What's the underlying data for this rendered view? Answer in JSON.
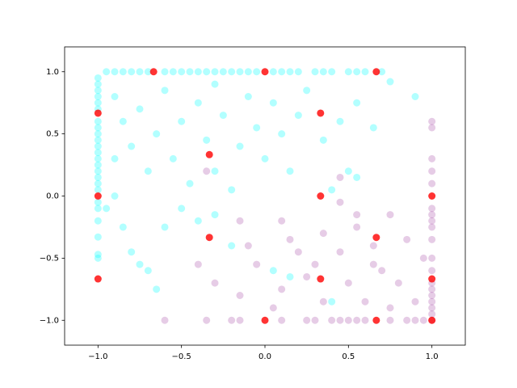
{
  "chart_data": {
    "type": "scatter",
    "xlim": [
      -1.2,
      1.2
    ],
    "ylim": [
      -1.2,
      1.2
    ],
    "xticks": [
      {
        "value": -1,
        "label": "−1.0"
      },
      {
        "value": -0.5,
        "label": "−0.5"
      },
      {
        "value": 0,
        "label": "0.0"
      },
      {
        "value": 0.5,
        "label": "0.5"
      },
      {
        "value": 1,
        "label": "1.0"
      }
    ],
    "yticks": [
      {
        "value": -1,
        "label": "−1.0"
      },
      {
        "value": -0.5,
        "label": "−0.5"
      },
      {
        "value": 0,
        "label": "0.0"
      },
      {
        "value": 0.5,
        "label": "0.5"
      },
      {
        "value": 1,
        "label": "1.0"
      }
    ],
    "grid": false,
    "series": [
      {
        "color": "#00ffff",
        "opacity": 0.3,
        "x": [
          -1,
          -1,
          -1,
          -1,
          -1,
          -1,
          -1,
          -1,
          -1,
          -1,
          -1,
          -1,
          -1,
          -1,
          -1,
          -1,
          -1,
          -1,
          -1,
          -1,
          -1,
          -1,
          -1,
          -1,
          -0.95,
          -0.9,
          -0.85,
          -0.8,
          -0.75,
          -0.7,
          -0.6,
          -0.55,
          -0.5,
          -0.45,
          -0.4,
          -0.35,
          -0.3,
          -0.25,
          -0.2,
          -0.15,
          -0.1,
          -0.05,
          0.05,
          0.1,
          0.15,
          0.2,
          0.3,
          0.35,
          0.4,
          0.5,
          0.55,
          0.6,
          0.7,
          -0.9,
          -0.85,
          -0.8,
          -0.75,
          -0.7,
          -0.65,
          -0.6,
          -0.55,
          -0.5,
          -0.45,
          -0.4,
          -0.35,
          -0.3,
          -0.25,
          -0.2,
          -0.15,
          -0.1,
          -0.05,
          0,
          0.05,
          0.1,
          0.15,
          0.2,
          0.25,
          0.35,
          0.45,
          0.55,
          0.65,
          0.75,
          0.9,
          -0.9,
          -0.85,
          -0.8,
          -0.75,
          -0.7,
          -0.6,
          -0.5,
          -0.4,
          -0.3,
          -0.2,
          0.05,
          0.15,
          0.4,
          0.4,
          0.55,
          -0.65,
          -0.95,
          -0.9,
          0.5,
          -0.3
        ],
        "y": [
          0.95,
          0.9,
          0.85,
          0.8,
          0.75,
          0.7,
          0.6,
          0.55,
          0.5,
          0.45,
          0.4,
          0.35,
          0.3,
          0.25,
          0.2,
          0.15,
          0.1,
          0.05,
          -0.05,
          -0.1,
          -0.2,
          -0.33,
          -0.47,
          -0.5,
          1,
          1,
          1,
          1,
          1,
          1,
          1,
          1,
          1,
          1,
          1,
          1,
          1,
          1,
          1,
          1,
          1,
          1,
          1,
          1,
          1,
          1,
          1,
          1,
          1,
          1,
          1,
          1,
          1,
          0.8,
          0.6,
          0.4,
          0.7,
          0.2,
          0.5,
          0.85,
          0.3,
          0.6,
          0.1,
          0.75,
          0.45,
          0.2,
          0.65,
          0.05,
          0.4,
          0.8,
          0.55,
          0.3,
          0.75,
          0.5,
          0.2,
          0.65,
          0.85,
          0.45,
          0.6,
          0.75,
          0.55,
          0.92,
          0.8,
          0,
          -0.25,
          -0.45,
          -0.55,
          -0.6,
          -0.25,
          -0.1,
          -0.2,
          -0.15,
          -0.4,
          -0.6,
          -0.65,
          -0.85,
          0.05,
          0.15,
          -0.75,
          -0.1,
          0.3,
          0.2,
          0.9
        ]
      },
      {
        "color": "#800080",
        "opacity": 0.2,
        "x": [
          1,
          1,
          1,
          1,
          1,
          1,
          1,
          1,
          1,
          1,
          1,
          1,
          1,
          1,
          1,
          1,
          1,
          1,
          1,
          -0.6,
          -0.35,
          -0.2,
          -0.15,
          0.1,
          0.25,
          0.3,
          0.4,
          0.45,
          0.5,
          0.55,
          0.6,
          0.75,
          0.85,
          0.9,
          0.95,
          -0.4,
          -0.3,
          -0.15,
          -0.05,
          0.05,
          0.1,
          0.15,
          0.2,
          0.25,
          0.3,
          0.35,
          0.45,
          0.5,
          0.55,
          0.6,
          0.65,
          0.7,
          0.75,
          0.8,
          0.85,
          0.9,
          0.95,
          0.45,
          0.55,
          -0.15,
          0.1,
          -0.1,
          0.35,
          0.75,
          0.65,
          -0.35,
          0.45
        ],
        "y": [
          0.6,
          0.55,
          0.3,
          0.2,
          0.1,
          -0.1,
          -0.15,
          -0.2,
          -0.25,
          -0.35,
          -0.5,
          -0.6,
          -0.7,
          -0.75,
          -0.8,
          -0.85,
          -0.9,
          -0.95,
          -1,
          -1,
          -1,
          -1,
          -1,
          -1,
          -1,
          -1,
          -1,
          -1,
          -1,
          -1,
          -1,
          -1,
          -1,
          -1,
          -1,
          -0.55,
          -0.7,
          -0.8,
          -0.55,
          -0.9,
          -0.75,
          -0.35,
          -0.45,
          -0.65,
          -0.55,
          -0.85,
          -0.45,
          -0.7,
          -0.25,
          -0.85,
          -0.4,
          -0.6,
          -0.15,
          -0.7,
          -0.35,
          -0.85,
          -0.5,
          -0.05,
          -0.15,
          -0.2,
          -0.2,
          -0.4,
          -0.3,
          -0.9,
          -0.55,
          0.2,
          0.15
        ]
      },
      {
        "color": "#ff0000",
        "opacity": 0.8,
        "x": [
          -1,
          -0.667,
          0,
          0.667,
          -1,
          -0.333,
          0.333,
          0.333,
          1,
          -1,
          -0.333,
          0.333,
          0.667,
          1,
          0,
          0.667,
          1
        ],
        "y": [
          0.667,
          1,
          1,
          1,
          0,
          0.333,
          0.667,
          0,
          0,
          -0.667,
          -0.333,
          -0.667,
          -0.333,
          -0.667,
          -1,
          -1,
          -1
        ]
      }
    ]
  }
}
